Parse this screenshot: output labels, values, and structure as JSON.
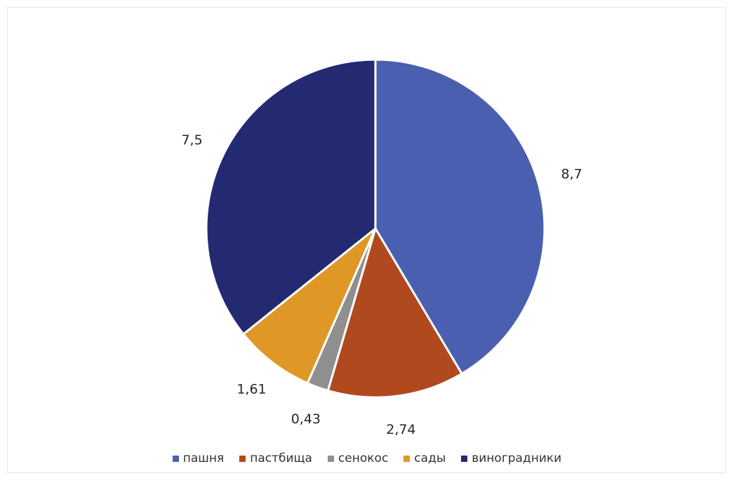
{
  "chart_data": {
    "type": "pie",
    "title": "",
    "categories": [
      "пашня",
      "пастбища",
      "сенокос",
      "сады",
      "виноградники"
    ],
    "values": [
      8.7,
      2.74,
      0.43,
      1.61,
      7.5
    ],
    "data_labels": [
      "8,7",
      "2,74",
      "0,43",
      "1,61",
      "7,5"
    ],
    "colors": [
      "#4a5fb0",
      "#b1491f",
      "#8f8f8f",
      "#df9826",
      "#232a72"
    ],
    "start_angle_deg": 0,
    "direction": "clockwise",
    "legend_position": "bottom",
    "grid": false
  },
  "legend": {
    "items": [
      {
        "label": "пашня",
        "color": "#4a5fb0"
      },
      {
        "label": "пастбища",
        "color": "#b1491f"
      },
      {
        "label": "сенокос",
        "color": "#8f8f8f"
      },
      {
        "label": "сады",
        "color": "#df9826"
      },
      {
        "label": "виноградники",
        "color": "#232a72"
      }
    ]
  }
}
